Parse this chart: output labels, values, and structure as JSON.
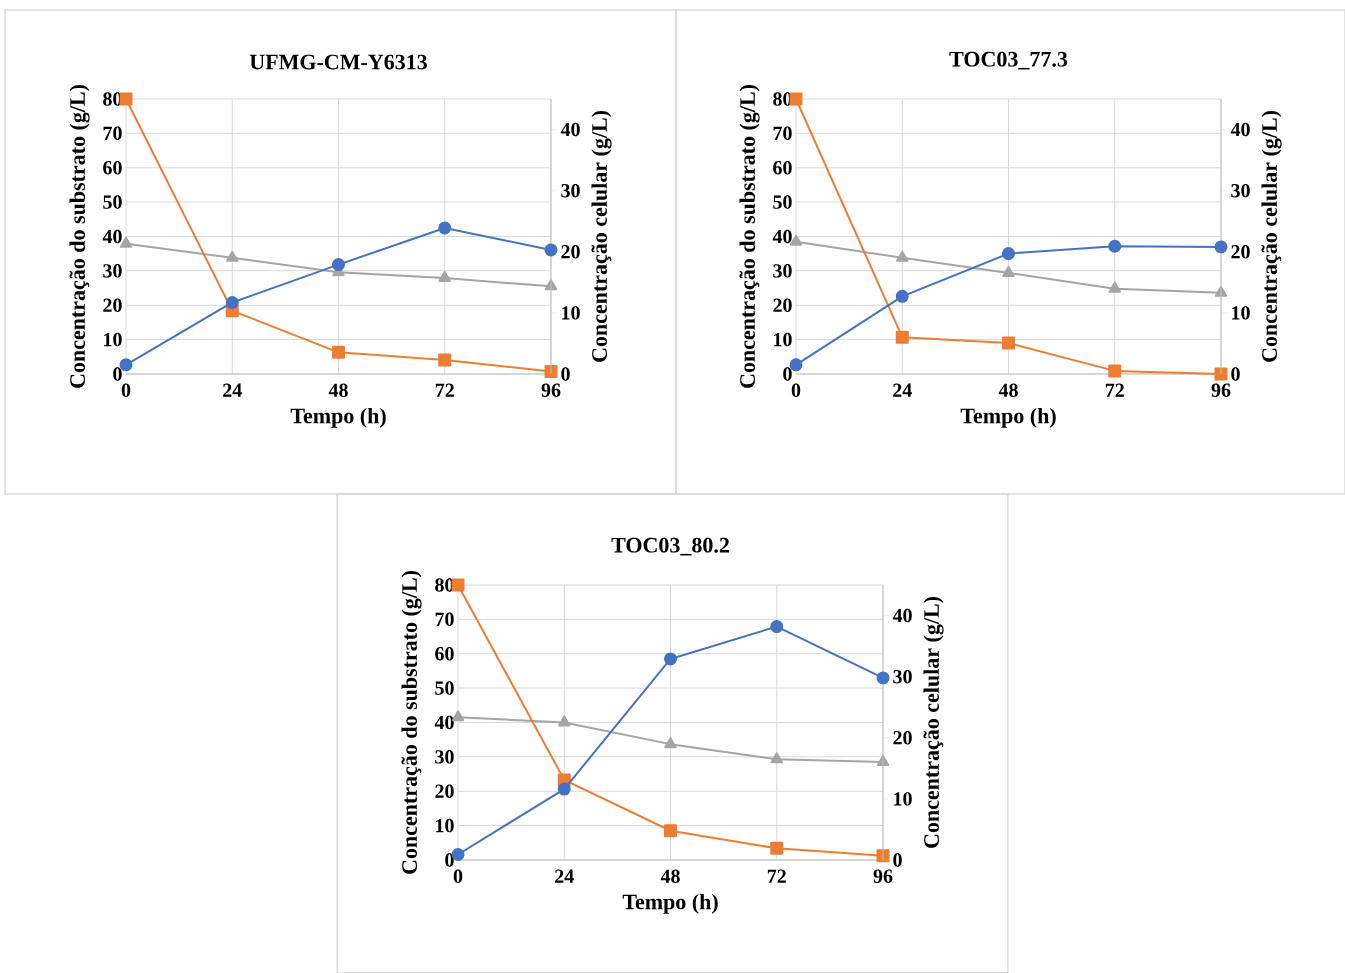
{
  "chart_data": [
    {
      "type": "line",
      "title": "UFMG-CM-Y6313",
      "xlabel": "Tempo (h)",
      "ylabel": "Concentração do substrato (g/L)",
      "y2label": "Concentração celular (g/L)",
      "x": [
        0,
        24,
        48,
        72,
        96
      ],
      "xlim": [
        0,
        96
      ],
      "xticks": [
        0,
        24,
        48,
        72,
        96
      ],
      "ylim": [
        0,
        80
      ],
      "yticks": [
        0,
        10,
        20,
        30,
        40,
        50,
        60,
        70,
        80
      ],
      "y2lim": [
        0,
        45
      ],
      "y2ticks": [
        0,
        10,
        20,
        30,
        40
      ],
      "grid": true,
      "series": [
        {
          "color": "#a5a5a5",
          "marker": "triangle",
          "values": [
            37.9,
            33.8,
            29.6,
            27.9,
            25.5
          ]
        },
        {
          "color": "#ed7d31",
          "marker": "square",
          "values": [
            80,
            18.4,
            6.3,
            4.1,
            0.7
          ]
        },
        {
          "color": "#4472c4",
          "marker": "circle",
          "axis": "y2",
          "values": [
            1.5,
            11.7,
            17.9,
            23.9,
            20.3
          ]
        }
      ]
    },
    {
      "type": "line",
      "title": "TOC03_77.3",
      "xlabel": "Tempo (h)",
      "ylabel": "Concentração do substrato (g/L)",
      "y2label": "Concentração celular (g/L)",
      "x": [
        0,
        24,
        48,
        72,
        96
      ],
      "xlim": [
        0,
        96
      ],
      "xticks": [
        0,
        24,
        48,
        72,
        96
      ],
      "ylim": [
        0,
        80
      ],
      "yticks": [
        0,
        10,
        20,
        30,
        40,
        50,
        60,
        70,
        80
      ],
      "y2lim": [
        0,
        45
      ],
      "y2ticks": [
        0,
        10,
        20,
        30,
        40
      ],
      "grid": true,
      "series": [
        {
          "color": "#a5a5a5",
          "marker": "triangle",
          "values": [
            38.5,
            33.8,
            29.4,
            24.8,
            23.6
          ]
        },
        {
          "color": "#ed7d31",
          "marker": "square",
          "values": [
            80,
            10.7,
            9.0,
            0.9,
            0
          ]
        },
        {
          "color": "#4472c4",
          "marker": "circle",
          "axis": "y2",
          "values": [
            1.5,
            12.7,
            19.7,
            20.9,
            20.8
          ]
        }
      ]
    },
    {
      "type": "line",
      "title": "TOC03_80.2",
      "xlabel": "Tempo (h)",
      "ylabel": "Concentração do substrato (g/L)",
      "y2label": "Concentração celular (g/L)",
      "x": [
        0,
        24,
        48,
        72,
        96
      ],
      "xlim": [
        0,
        96
      ],
      "xticks": [
        0,
        24,
        48,
        72,
        96
      ],
      "ylim": [
        0,
        80
      ],
      "yticks": [
        0,
        10,
        20,
        30,
        40,
        50,
        60,
        70,
        80
      ],
      "y2lim": [
        0,
        45
      ],
      "y2ticks": [
        0,
        10,
        20,
        30,
        40
      ],
      "grid": true,
      "series": [
        {
          "color": "#a5a5a5",
          "marker": "triangle",
          "values": [
            41.5,
            40.0,
            33.7,
            29.3,
            28.5
          ]
        },
        {
          "color": "#ed7d31",
          "marker": "square",
          "values": [
            80,
            23.3,
            8.5,
            3.4,
            1.2
          ]
        },
        {
          "color": "#4472c4",
          "marker": "circle",
          "axis": "y2",
          "values": [
            0.9,
            11.6,
            32.9,
            38.2,
            29.8
          ]
        }
      ]
    }
  ]
}
